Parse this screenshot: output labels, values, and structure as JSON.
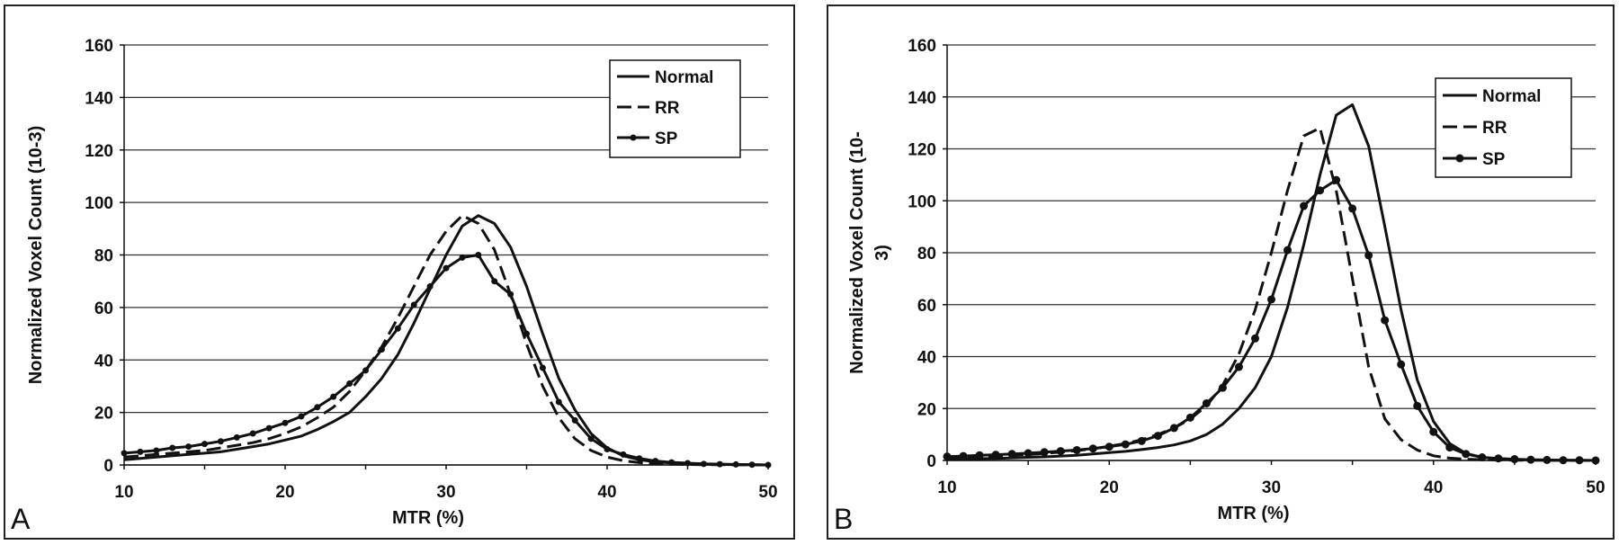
{
  "chart_data": [
    {
      "panel": "A",
      "type": "line",
      "title": "",
      "xlabel": "MTR (%)",
      "ylabel": "Normalized Voxel Count (10-3)",
      "xlim": [
        10,
        50
      ],
      "ylim": [
        0,
        160
      ],
      "xticks": [
        10,
        20,
        30,
        40,
        50
      ],
      "yticks": [
        0,
        20,
        40,
        60,
        80,
        100,
        120,
        140,
        160
      ],
      "grid": "horizontal",
      "legend_position": "top-right",
      "series": [
        {
          "name": "Normal",
          "style": "solid",
          "x": [
            10,
            11,
            12,
            13,
            14,
            15,
            16,
            17,
            18,
            19,
            20,
            21,
            22,
            23,
            24,
            25,
            26,
            27,
            28,
            29,
            30,
            31,
            32,
            33,
            34,
            35,
            36,
            37,
            38,
            39,
            40,
            41,
            42,
            43,
            44,
            45,
            46,
            47,
            48,
            49,
            50
          ],
          "y": [
            2,
            2.5,
            3,
            3.5,
            4,
            4.5,
            5,
            6,
            7,
            8,
            9.5,
            11,
            13.5,
            16.5,
            20,
            26,
            33,
            42,
            54,
            67,
            80,
            91,
            95,
            92,
            83,
            68,
            50,
            33,
            21,
            12,
            6.5,
            3.5,
            2,
            1.2,
            0.8,
            0.5,
            0.3,
            0.2,
            0.1,
            0.1,
            0
          ]
        },
        {
          "name": "RR",
          "style": "dashed",
          "x": [
            10,
            11,
            12,
            13,
            14,
            15,
            16,
            17,
            18,
            19,
            20,
            21,
            22,
            23,
            24,
            25,
            26,
            27,
            28,
            29,
            30,
            31,
            32,
            33,
            34,
            35,
            36,
            37,
            38,
            39,
            40,
            41,
            42,
            43,
            44,
            45,
            46,
            47,
            48,
            49,
            50
          ],
          "y": [
            3,
            3.5,
            4,
            4.5,
            5,
            5.5,
            6.5,
            7.5,
            8.5,
            10,
            12,
            14.5,
            18,
            22,
            28,
            36,
            45,
            56,
            68,
            80,
            89,
            95,
            92,
            82,
            65,
            46,
            30,
            18,
            10,
            5.5,
            3,
            1.6,
            0.9,
            0.5,
            0.3,
            0.2,
            0.1,
            0.1,
            0.05,
            0.05,
            0
          ]
        },
        {
          "name": "SP",
          "style": "solid-markers",
          "x": [
            10,
            11,
            12,
            13,
            14,
            15,
            16,
            17,
            18,
            19,
            20,
            21,
            22,
            23,
            24,
            25,
            26,
            27,
            28,
            29,
            30,
            31,
            32,
            33,
            34,
            35,
            36,
            37,
            38,
            39,
            40,
            41,
            42,
            43,
            44,
            45,
            46,
            47,
            48,
            49,
            50
          ],
          "y": [
            4.5,
            5,
            5.5,
            6.5,
            7,
            8,
            9,
            10.5,
            12,
            14,
            16,
            18.5,
            22,
            26,
            31,
            36,
            44,
            52,
            61,
            68,
            75,
            79,
            80,
            70,
            65,
            50,
            37,
            24,
            17,
            10,
            6,
            4,
            2.5,
            1.5,
            1,
            0.7,
            0.4,
            0.3,
            0.2,
            0.1,
            0
          ]
        }
      ]
    },
    {
      "panel": "B",
      "type": "line",
      "title": "",
      "xlabel": "MTR (%)",
      "ylabel": "Normalized Voxel Count (10-3)",
      "ylabel_lines": [
        "Normalized Voxel Count (10-",
        "3)"
      ],
      "xlim": [
        10,
        50
      ],
      "ylim": [
        0,
        160
      ],
      "xticks": [
        10,
        20,
        30,
        40,
        50
      ],
      "yticks": [
        0,
        20,
        40,
        60,
        80,
        100,
        120,
        140,
        160
      ],
      "grid": "horizontal",
      "legend_position": "top-right",
      "series": [
        {
          "name": "Normal",
          "style": "solid",
          "x": [
            10,
            11,
            12,
            13,
            14,
            15,
            16,
            17,
            18,
            19,
            20,
            21,
            22,
            23,
            24,
            25,
            26,
            27,
            28,
            29,
            30,
            31,
            32,
            33,
            34,
            35,
            36,
            37,
            38,
            39,
            40,
            41,
            42,
            43,
            44,
            45,
            46,
            47,
            48,
            49,
            50
          ],
          "y": [
            0.5,
            0.6,
            0.7,
            0.8,
            1,
            1.2,
            1.4,
            1.7,
            2,
            2.5,
            3,
            3.5,
            4.2,
            5,
            6,
            7.5,
            10,
            14,
            20,
            28,
            40,
            59,
            83,
            110,
            133,
            137,
            121,
            90,
            58,
            31,
            15,
            6.5,
            2.7,
            1.2,
            0.6,
            0.3,
            0.2,
            0.1,
            0.1,
            0.05,
            0
          ]
        },
        {
          "name": "RR",
          "style": "dashed",
          "x": [
            10,
            11,
            12,
            13,
            14,
            15,
            16,
            17,
            18,
            19,
            20,
            21,
            22,
            23,
            24,
            25,
            26,
            27,
            28,
            29,
            30,
            31,
            32,
            33,
            34,
            35,
            36,
            37,
            38,
            39,
            40,
            41,
            42,
            43,
            44,
            45,
            46,
            47,
            48,
            49,
            50
          ],
          "y": [
            1,
            1.2,
            1.4,
            1.7,
            2,
            2.3,
            2.7,
            3.2,
            3.8,
            4.5,
            5.5,
            6.5,
            8,
            10,
            12.5,
            16,
            21,
            29,
            41,
            58,
            80,
            104,
            125,
            128,
            104,
            70,
            36,
            16,
            8,
            4,
            1.8,
            0.9,
            0.5,
            0.3,
            0.2,
            0.1,
            0.1,
            0.05,
            0.05,
            0,
            0
          ]
        },
        {
          "name": "SP",
          "style": "solid-markers",
          "x": [
            10,
            11,
            12,
            13,
            14,
            15,
            16,
            17,
            18,
            19,
            20,
            21,
            22,
            23,
            24,
            25,
            26,
            27,
            28,
            29,
            30,
            31,
            32,
            33,
            34,
            35,
            36,
            37,
            38,
            39,
            40,
            41,
            42,
            43,
            44,
            45,
            46,
            47,
            48,
            49,
            50
          ],
          "y": [
            1.5,
            1.7,
            2,
            2.2,
            2.5,
            2.8,
            3.2,
            3.6,
            4,
            4.6,
            5.3,
            6.2,
            7.5,
            9.5,
            12.5,
            16.5,
            22,
            28,
            36,
            47,
            62,
            81,
            98,
            104,
            108,
            97,
            79,
            54,
            37,
            21,
            11,
            5,
            2.5,
            1.2,
            0.8,
            0.5,
            0.3,
            0.2,
            0.1,
            0.1,
            0
          ]
        }
      ]
    }
  ],
  "panels": [
    {
      "letter": "A"
    },
    {
      "letter": "B"
    }
  ],
  "colors": {
    "line": "#111111",
    "grid": "#333333",
    "background": "#ffffff"
  }
}
